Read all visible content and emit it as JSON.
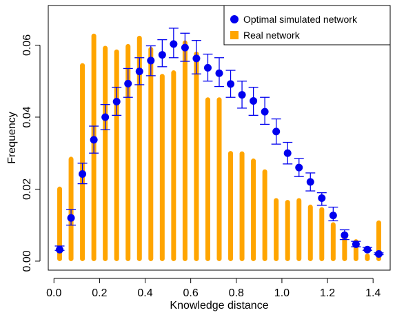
{
  "chart_data": {
    "type": "bar",
    "xlabel": "Knowledge distance",
    "ylabel": "Frequency",
    "xlim": [
      -0.025,
      1.475
    ],
    "ylim": [
      -0.0025,
      0.071
    ],
    "x_ticks": [
      "0.0",
      "0.2",
      "0.4",
      "0.6",
      "0.8",
      "1.0",
      "1.2",
      "1.4"
    ],
    "y_ticks": [
      "0.00",
      "0.02",
      "0.04",
      "0.06"
    ],
    "legend_position": "top-right",
    "colors": {
      "real": "#FFA500",
      "simulated": "#0000EE"
    },
    "series": [
      {
        "name": "Real network",
        "type": "bar",
        "x": [
          0.025,
          0.075,
          0.125,
          0.175,
          0.225,
          0.275,
          0.325,
          0.375,
          0.425,
          0.475,
          0.525,
          0.575,
          0.625,
          0.675,
          0.725,
          0.775,
          0.825,
          0.875,
          0.925,
          0.975,
          1.025,
          1.075,
          1.125,
          1.175,
          1.225,
          1.275,
          1.325,
          1.375,
          1.425
        ],
        "values": [
          0.0207,
          0.029,
          0.055,
          0.0632,
          0.0598,
          0.0588,
          0.0603,
          0.0626,
          0.0595,
          0.052,
          0.053,
          0.0613,
          0.0582,
          0.0455,
          0.0455,
          0.0306,
          0.0305,
          0.0285,
          0.0255,
          0.0175,
          0.017,
          0.0175,
          0.0157,
          0.015,
          0.0108,
          0.0083,
          0.0061,
          0.0021,
          0.0113
        ]
      },
      {
        "name": "Optimal simulated network",
        "type": "scatter",
        "x": [
          0.025,
          0.075,
          0.125,
          0.175,
          0.225,
          0.275,
          0.325,
          0.375,
          0.425,
          0.475,
          0.525,
          0.575,
          0.625,
          0.675,
          0.725,
          0.775,
          0.825,
          0.875,
          0.925,
          0.975,
          1.025,
          1.075,
          1.125,
          1.175,
          1.225,
          1.275,
          1.325,
          1.375,
          1.425
        ],
        "values": [
          0.0032,
          0.012,
          0.0242,
          0.0337,
          0.04,
          0.0443,
          0.0493,
          0.0527,
          0.0557,
          0.0573,
          0.0603,
          0.0593,
          0.0563,
          0.0537,
          0.0522,
          0.0492,
          0.0462,
          0.0445,
          0.0415,
          0.036,
          0.03,
          0.026,
          0.022,
          0.0175,
          0.0127,
          0.0072,
          0.0047,
          0.0032,
          0.002
        ],
        "err_low": [
          0.003,
          0.01,
          0.0215,
          0.03,
          0.0365,
          0.0405,
          0.0455,
          0.049,
          0.0515,
          0.054,
          0.0565,
          0.0555,
          0.052,
          0.05,
          0.0485,
          0.0455,
          0.0425,
          0.0405,
          0.038,
          0.0325,
          0.027,
          0.0235,
          0.0195,
          0.0155,
          0.0112,
          0.006,
          0.004,
          0.003,
          0.0018
        ],
        "err_high": [
          0.0042,
          0.0143,
          0.0272,
          0.0375,
          0.0435,
          0.0483,
          0.0535,
          0.0565,
          0.0598,
          0.0615,
          0.0647,
          0.0633,
          0.0613,
          0.0575,
          0.0565,
          0.053,
          0.05,
          0.0483,
          0.0455,
          0.0395,
          0.033,
          0.0285,
          0.0245,
          0.019,
          0.015,
          0.0087,
          0.0055,
          0.0038,
          0.0023
        ]
      }
    ]
  }
}
